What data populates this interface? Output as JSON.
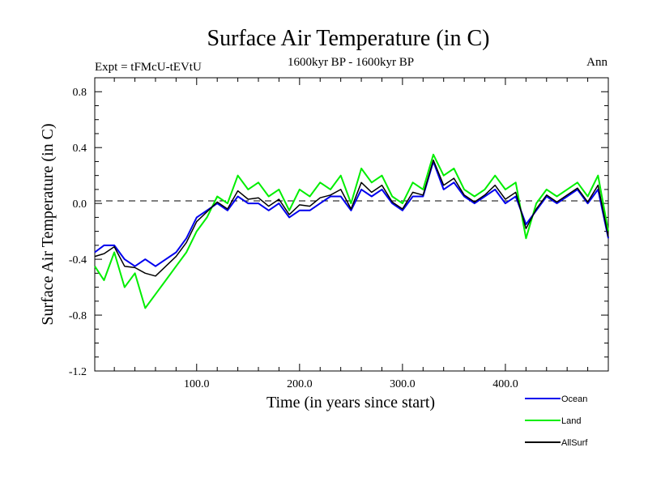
{
  "chart_data": {
    "type": "line",
    "title": "Surface Air Temperature (in C)",
    "subtitle_left": "Expt = tFMcU-tEVtU",
    "subtitle_center": "1600kyr BP - 1600kyr BP",
    "subtitle_right": "Ann",
    "xlabel": "Time (in years since start)",
    "ylabel": "Surface Air Temperature (in C)",
    "xlim": [
      1,
      500
    ],
    "ylim": [
      -1.2,
      0.9
    ],
    "xticks": [
      100,
      200,
      300,
      400
    ],
    "xtick_labels": [
      "100.0",
      "200.0",
      "300.0",
      "400.0"
    ],
    "yticks": [
      -1.2,
      -0.8,
      -0.4,
      0.0,
      0.4,
      0.8
    ],
    "ytick_labels": [
      "-1.2",
      "-0.8",
      "-0.4",
      "0.0",
      "0.4",
      "0.8"
    ],
    "zero_line": "dashed",
    "legend_position": "bottom-right",
    "series": [
      {
        "name": "Land",
        "color": "#00ee00",
        "x": [
          1,
          10,
          20,
          30,
          40,
          50,
          60,
          70,
          80,
          90,
          100,
          110,
          120,
          130,
          140,
          150,
          160,
          170,
          180,
          190,
          200,
          210,
          220,
          230,
          240,
          250,
          260,
          270,
          280,
          290,
          300,
          310,
          320,
          330,
          340,
          350,
          360,
          370,
          380,
          390,
          400,
          410,
          420,
          430,
          440,
          450,
          460,
          470,
          480,
          490,
          500
        ],
        "values": [
          -0.45,
          -0.55,
          -0.35,
          -0.6,
          -0.5,
          -0.75,
          -0.65,
          -0.55,
          -0.45,
          -0.35,
          -0.2,
          -0.1,
          0.05,
          0.0,
          0.2,
          0.1,
          0.15,
          0.05,
          0.1,
          -0.05,
          0.1,
          0.05,
          0.15,
          0.1,
          0.2,
          0.0,
          0.25,
          0.15,
          0.2,
          0.05,
          0.0,
          0.15,
          0.1,
          0.35,
          0.2,
          0.25,
          0.1,
          0.05,
          0.1,
          0.2,
          0.1,
          0.15,
          -0.25,
          0.0,
          0.1,
          0.05,
          0.1,
          0.15,
          0.05,
          0.2,
          -0.2
        ]
      },
      {
        "name": "Ocean",
        "color": "#0000ee",
        "x": [
          1,
          10,
          20,
          30,
          40,
          50,
          60,
          70,
          80,
          90,
          100,
          110,
          120,
          130,
          140,
          150,
          160,
          170,
          180,
          190,
          200,
          210,
          220,
          230,
          240,
          250,
          260,
          270,
          280,
          290,
          300,
          310,
          320,
          330,
          340,
          350,
          360,
          370,
          380,
          390,
          400,
          410,
          420,
          430,
          440,
          450,
          460,
          470,
          480,
          490,
          500
        ],
        "values": [
          -0.35,
          -0.3,
          -0.3,
          -0.4,
          -0.45,
          -0.4,
          -0.45,
          -0.4,
          -0.35,
          -0.25,
          -0.1,
          -0.05,
          0.0,
          -0.05,
          0.05,
          0.0,
          0.0,
          -0.05,
          0.0,
          -0.1,
          -0.05,
          -0.05,
          0.0,
          0.05,
          0.05,
          -0.05,
          0.1,
          0.05,
          0.1,
          0.0,
          -0.05,
          0.05,
          0.05,
          0.3,
          0.1,
          0.15,
          0.05,
          0.0,
          0.05,
          0.1,
          0.0,
          0.05,
          -0.15,
          -0.05,
          0.05,
          0.0,
          0.05,
          0.1,
          0.0,
          0.1,
          -0.25
        ]
      },
      {
        "name": "AllSurf",
        "color": "#000000",
        "x": [
          1,
          10,
          20,
          30,
          40,
          50,
          60,
          70,
          80,
          90,
          100,
          110,
          120,
          130,
          140,
          150,
          160,
          170,
          180,
          190,
          200,
          210,
          220,
          230,
          240,
          250,
          260,
          270,
          280,
          290,
          300,
          310,
          320,
          330,
          340,
          350,
          360,
          370,
          380,
          390,
          400,
          410,
          420,
          430,
          440,
          450,
          460,
          470,
          480,
          490,
          500
        ],
        "values": [
          -0.38,
          -0.36,
          -0.31,
          -0.45,
          -0.46,
          -0.5,
          -0.52,
          -0.45,
          -0.38,
          -0.28,
          -0.13,
          -0.06,
          0.01,
          -0.04,
          0.09,
          0.03,
          0.04,
          -0.02,
          0.03,
          -0.08,
          -0.01,
          -0.02,
          0.04,
          0.06,
          0.1,
          -0.04,
          0.15,
          0.08,
          0.13,
          0.01,
          -0.04,
          0.08,
          0.06,
          0.31,
          0.13,
          0.18,
          0.06,
          0.01,
          0.06,
          0.13,
          0.03,
          0.08,
          -0.18,
          -0.04,
          0.06,
          0.01,
          0.06,
          0.11,
          0.01,
          0.13,
          -0.24
        ]
      }
    ]
  }
}
